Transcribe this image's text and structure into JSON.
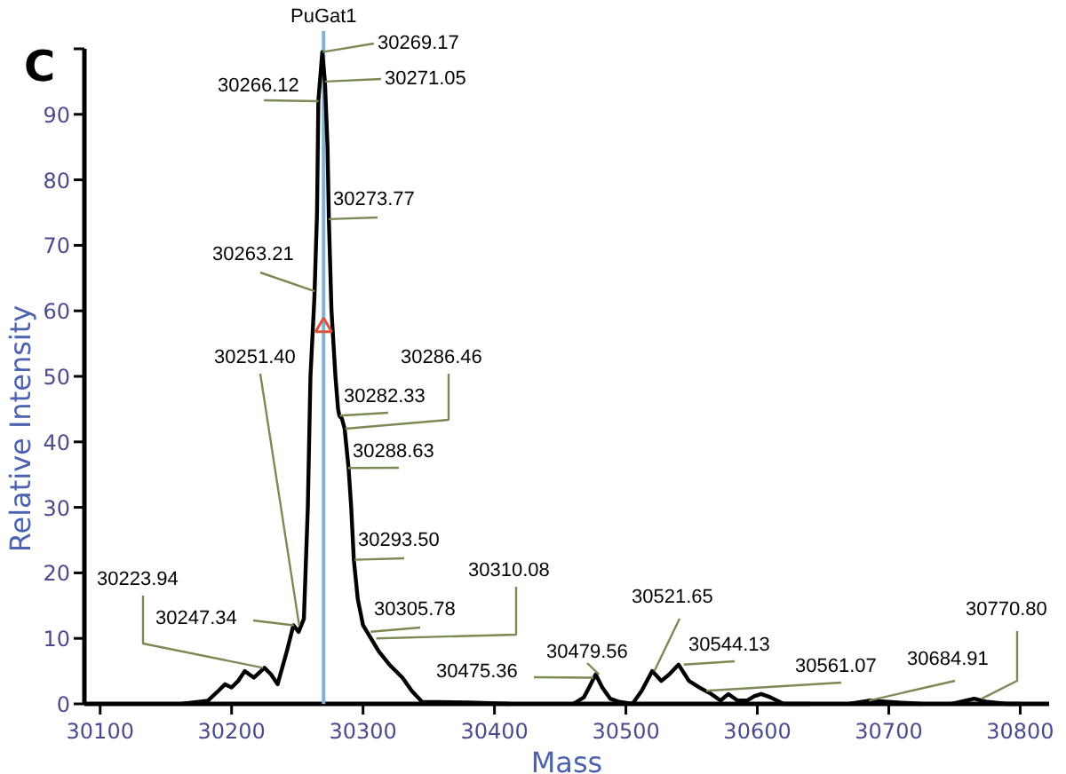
{
  "chart_data": {
    "type": "line",
    "title": "C",
    "xlabel": "Mass",
    "ylabel": "Relative Intensity",
    "xlim": [
      30088,
      30822
    ],
    "ylim": [
      0,
      100
    ],
    "xticks": [
      30100,
      30200,
      30300,
      30400,
      30500,
      30600,
      30700,
      30800
    ],
    "yticks": [
      0,
      10,
      20,
      30,
      40,
      50,
      60,
      70,
      80,
      90,
      {
        "value": 100,
        "label": null
      }
    ],
    "grid": false,
    "series": [
      {
        "color": "#000000",
        "marker": "none",
        "line_style": "solid",
        "x": [
          30162,
          30182,
          30190,
          30195,
          30200,
          30205,
          30210,
          30217,
          30225,
          30230,
          30235,
          30242,
          30247,
          30251,
          30255,
          30258,
          30260,
          30263,
          30265,
          30266,
          30268,
          30269,
          30271,
          30273,
          30274,
          30276,
          30279,
          30281,
          30282,
          30284,
          30286,
          30289,
          30291,
          30293,
          30296,
          30300,
          30306,
          30312,
          30320,
          30330,
          30337,
          30345,
          30380,
          30412,
          30430,
          30460,
          30468,
          30472,
          30477,
          30482,
          30488,
          30495,
          30505,
          30512,
          30520,
          30527,
          30533,
          30540,
          30548,
          30556,
          30565,
          30572,
          30578,
          30585,
          30592,
          30598,
          30603,
          30610,
          30620,
          30640,
          30655,
          30670,
          30685,
          30700,
          30725,
          30735,
          30748,
          30765,
          30775,
          30790,
          30800
        ],
        "values": [
          0,
          0.5,
          2,
          3,
          2.5,
          3.5,
          5,
          4,
          5.5,
          4.5,
          3,
          8,
          12,
          11,
          13,
          30,
          50,
          62,
          75,
          92,
          97,
          99.5,
          95,
          85,
          74,
          60,
          50,
          45,
          44,
          43.5,
          42,
          36,
          30,
          22,
          16,
          12,
          10,
          8,
          6,
          4,
          2,
          0.3,
          0.2,
          0,
          null,
          0,
          1,
          2.5,
          4.5,
          2.5,
          0.8,
          0.3,
          0,
          2,
          5,
          3.5,
          4.5,
          6,
          3.5,
          2.5,
          1.5,
          0.5,
          1.5,
          0.5,
          0.5,
          1.2,
          1.5,
          1,
          0,
          0,
          null,
          0,
          0.5,
          0.3,
          0,
          null,
          0,
          0.8,
          0.3,
          0,
          0
        ]
      },
      {
        "type": "scatter",
        "color": "#e0503a",
        "marker": "triangle",
        "x": [
          30270
        ],
        "values": [
          57.5
        ]
      }
    ],
    "ref_lines": [
      {
        "axis": "x",
        "value": 30270,
        "label": "PuGat1",
        "color": "#7fb2d4",
        "line_style": "solid"
      }
    ],
    "annotations": [
      {
        "text": "30269.17",
        "x": 30269.17,
        "y": 99.5
      },
      {
        "text": "30271.05",
        "x": 30271.05,
        "y": 95
      },
      {
        "text": "30266.12",
        "x": 30266.12,
        "y": 92
      },
      {
        "text": "30273.77",
        "x": 30273.77,
        "y": 74
      },
      {
        "text": "30263.21",
        "x": 30263.21,
        "y": 63
      },
      {
        "text": "30251.40",
        "x": 30251.4,
        "y": 12
      },
      {
        "text": "30286.46",
        "x": 30286.46,
        "y": 42
      },
      {
        "text": "30282.33",
        "x": 30282.33,
        "y": 44
      },
      {
        "text": "30288.63",
        "x": 30288.63,
        "y": 36
      },
      {
        "text": "30293.50",
        "x": 30293.5,
        "y": 22
      },
      {
        "text": "30305.78",
        "x": 30305.78,
        "y": 11
      },
      {
        "text": "30310.08",
        "x": 30310.08,
        "y": 10
      },
      {
        "text": "30223.94",
        "x": 30223.94,
        "y": 5.5
      },
      {
        "text": "30247.34",
        "x": 30247.34,
        "y": 12
      },
      {
        "text": "30475.36",
        "x": 30475.36,
        "y": 4
      },
      {
        "text": "30479.56",
        "x": 30479.56,
        "y": 4.5
      },
      {
        "text": "30521.65",
        "x": 30521.65,
        "y": 5
      },
      {
        "text": "30544.13",
        "x": 30544.13,
        "y": 6
      },
      {
        "text": "30561.07",
        "x": 30561.07,
        "y": 2
      },
      {
        "text": "30684.91",
        "x": 30684.91,
        "y": 0.5
      },
      {
        "text": "30770.80",
        "x": 30770.8,
        "y": 0.8
      }
    ]
  }
}
